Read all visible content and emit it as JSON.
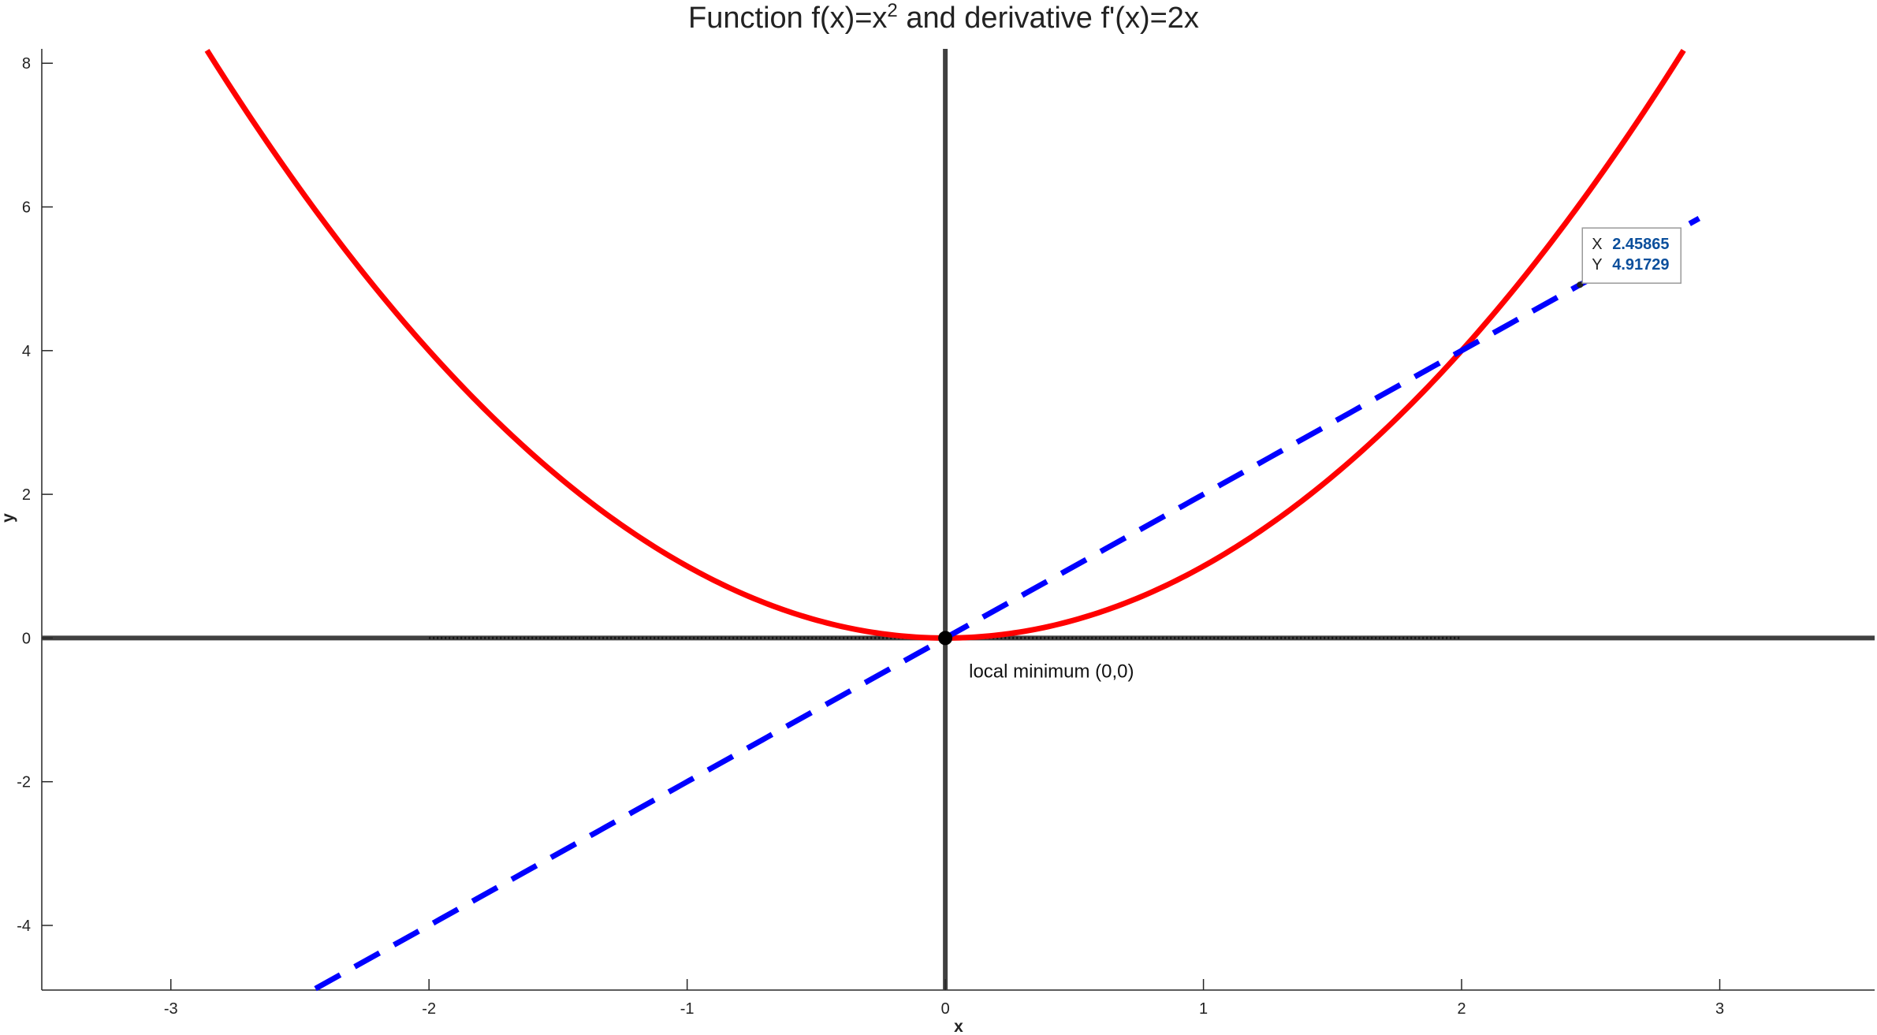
{
  "chart_data": {
    "type": "line",
    "title": "Function f(x)=x² and derivative f'(x)=2x",
    "title_parts": {
      "prefix": "Function  f(x)=x",
      "superscript": "2",
      "suffix": "  and  derivative  f'(x)=2x"
    },
    "xlabel": "x",
    "ylabel": "y",
    "xlim": [
      -3.5,
      3.6
    ],
    "ylim": [
      -4.9,
      8.2
    ],
    "xticks": [
      -3,
      -2,
      -1,
      0,
      1,
      2,
      3
    ],
    "yticks": [
      -4,
      -2,
      0,
      2,
      4,
      6,
      8
    ],
    "grid": false,
    "series": [
      {
        "color": "#ff0000",
        "style": "solid",
        "formula": "x^2",
        "x_range": [
          -2.86,
          2.86
        ],
        "x": [
          -2.86,
          -2.5,
          -2,
          -1.5,
          -1,
          -0.5,
          0,
          0.5,
          1,
          1.5,
          2,
          2.5,
          2.86
        ],
        "y": [
          8.18,
          6.25,
          4,
          2.25,
          1,
          0.25,
          0,
          0.25,
          1,
          2.25,
          4,
          6.25,
          8.18
        ]
      },
      {
        "color": "#0000ff",
        "style": "dashed",
        "formula": "2x",
        "x_range": [
          -2.44,
          2.92
        ],
        "x": [
          -2.44,
          -2,
          -1,
          0,
          1,
          2,
          2.92
        ],
        "y": [
          -4.88,
          -4,
          -2,
          0,
          2,
          4,
          5.84
        ]
      }
    ],
    "reference_lines": {
      "horizontal_y": 0,
      "vertical_x": 0,
      "color": "#404040"
    },
    "dotted_segment": {
      "x": [
        -2,
        2
      ],
      "y": 0
    },
    "annotations": [
      {
        "text": "local minimum (0,0)",
        "x": 0,
        "y": 0
      }
    ],
    "datatip": {
      "x_key": "X",
      "y_key": "Y",
      "x_value": "2.45865",
      "y_value": "4.91729",
      "x": 2.45865,
      "y": 4.91729
    },
    "marker": {
      "x": 0,
      "y": 0,
      "color": "#000000"
    }
  }
}
